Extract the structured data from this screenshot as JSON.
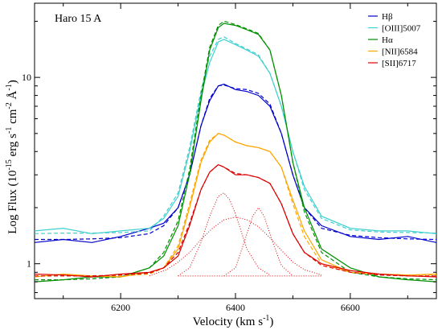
{
  "chart_data": {
    "type": "line",
    "title": "Haro 15 A",
    "xlabel": {
      "main": "Velocity (km s",
      "sup": "-1",
      "close": ")"
    },
    "ylabel": {
      "p1": "Log Flux (10",
      "s1": "-15",
      "p2": " erg s",
      "s2": "-1",
      "p3": " cm",
      "s3": "-2",
      "p4": " Å",
      "s4": "-1",
      "p5": ")"
    },
    "x_scale": "linear",
    "y_scale": "log",
    "xlim": [
      6050,
      6750
    ],
    "ylim": [
      0.65,
      25
    ],
    "x_ticks": [
      6200,
      6400,
      6600
    ],
    "x_tick_labels": [
      "6200",
      "6400",
      "6600"
    ],
    "y_ticks": [
      1,
      10
    ],
    "y_tick_labels": [
      "1",
      "10"
    ],
    "legend_position": "top-right",
    "series": [
      {
        "name": "Hβ",
        "color": "#0000cc",
        "x": [
          6050,
          6100,
          6150,
          6200,
          6250,
          6275,
          6300,
          6320,
          6340,
          6355,
          6370,
          6380,
          6400,
          6420,
          6440,
          6460,
          6480,
          6500,
          6520,
          6550,
          6600,
          6650,
          6700,
          6750
        ],
        "y": [
          1.3,
          1.35,
          1.3,
          1.4,
          1.55,
          1.65,
          2.0,
          3.0,
          5.5,
          7.5,
          9.0,
          9.2,
          8.6,
          8.4,
          8.0,
          7.0,
          5.0,
          3.0,
          2.0,
          1.6,
          1.4,
          1.35,
          1.4,
          1.3
        ],
        "fit_y": [
          1.35,
          1.35,
          1.36,
          1.38,
          1.45,
          1.6,
          2.0,
          3.0,
          5.5,
          7.7,
          9.0,
          9.1,
          8.7,
          8.6,
          8.2,
          7.2,
          5.0,
          3.0,
          2.0,
          1.55,
          1.42,
          1.38,
          1.36,
          1.35
        ]
      },
      {
        "name": "[OIII]5007",
        "color": "#40d0d0",
        "x": [
          6050,
          6100,
          6150,
          6200,
          6250,
          6275,
          6300,
          6320,
          6340,
          6355,
          6370,
          6380,
          6400,
          6420,
          6440,
          6460,
          6480,
          6500,
          6520,
          6550,
          6600,
          6650,
          6700,
          6750
        ],
        "y": [
          1.5,
          1.55,
          1.45,
          1.5,
          1.55,
          1.75,
          2.3,
          4.0,
          8.0,
          12.0,
          15.5,
          16.0,
          15.0,
          14.0,
          13.0,
          10.5,
          7.0,
          4.0,
          2.6,
          1.8,
          1.55,
          1.5,
          1.5,
          1.45
        ],
        "fit_y": [
          1.45,
          1.46,
          1.46,
          1.47,
          1.5,
          1.8,
          2.4,
          4.2,
          8.5,
          13.0,
          16.0,
          16.5,
          15.2,
          14.2,
          13.2,
          10.5,
          7.0,
          4.0,
          2.5,
          1.75,
          1.52,
          1.48,
          1.47,
          1.46
        ]
      },
      {
        "name": "Hα",
        "color": "#009000",
        "x": [
          6050,
          6100,
          6150,
          6200,
          6250,
          6275,
          6300,
          6320,
          6340,
          6355,
          6370,
          6380,
          6400,
          6420,
          6440,
          6460,
          6480,
          6500,
          6520,
          6550,
          6600,
          6650,
          6700,
          6750
        ],
        "y": [
          0.8,
          0.82,
          0.85,
          0.85,
          0.95,
          1.1,
          1.6,
          3.0,
          7.5,
          14.0,
          18.5,
          19.5,
          19.0,
          18.0,
          17.0,
          14.0,
          8.0,
          3.5,
          2.0,
          1.2,
          0.95,
          0.85,
          0.82,
          0.8
        ],
        "fit_y": [
          0.82,
          0.82,
          0.83,
          0.85,
          0.95,
          1.15,
          1.7,
          3.2,
          8.0,
          14.5,
          19.0,
          20.0,
          19.2,
          18.2,
          17.2,
          14.0,
          8.0,
          3.5,
          1.9,
          1.15,
          0.9,
          0.85,
          0.83,
          0.82
        ]
      },
      {
        "name": "[NII]6584",
        "color": "#ffa500",
        "x": [
          6050,
          6100,
          6150,
          6200,
          6250,
          6275,
          6300,
          6320,
          6340,
          6355,
          6370,
          6380,
          6400,
          6420,
          6440,
          6460,
          6480,
          6500,
          6520,
          6550,
          6600,
          6650,
          6700,
          6750
        ],
        "y": [
          0.85,
          0.88,
          0.86,
          0.85,
          0.9,
          0.95,
          1.2,
          2.0,
          3.5,
          4.5,
          5.0,
          4.9,
          4.5,
          4.3,
          4.2,
          4.0,
          3.3,
          2.2,
          1.5,
          1.05,
          0.9,
          0.88,
          0.87,
          0.88
        ],
        "fit_y": [
          0.86,
          0.86,
          0.86,
          0.86,
          0.88,
          0.95,
          1.25,
          2.1,
          3.6,
          4.6,
          5.0,
          4.9,
          4.5,
          4.3,
          4.2,
          4.0,
          3.3,
          2.1,
          1.4,
          1.0,
          0.9,
          0.88,
          0.87,
          0.87
        ]
      },
      {
        "name": "[SII]6717",
        "color": "#dd0000",
        "x": [
          6050,
          6100,
          6150,
          6200,
          6250,
          6275,
          6300,
          6320,
          6340,
          6355,
          6370,
          6380,
          6400,
          6420,
          6440,
          6460,
          6480,
          6500,
          6520,
          6550,
          6600,
          6650,
          6700,
          6750
        ],
        "y": [
          0.88,
          0.87,
          0.85,
          0.88,
          0.9,
          0.95,
          1.1,
          1.6,
          2.5,
          3.1,
          3.4,
          3.3,
          3.0,
          3.0,
          2.9,
          2.7,
          2.1,
          1.45,
          1.15,
          1.0,
          0.92,
          0.88,
          0.86,
          0.85
        ],
        "fit_y": [
          0.86,
          0.86,
          0.86,
          0.87,
          0.89,
          0.95,
          1.15,
          1.65,
          2.5,
          3.1,
          3.4,
          3.3,
          3.05,
          3.0,
          2.9,
          2.7,
          2.1,
          1.45,
          1.15,
          0.98,
          0.9,
          0.87,
          0.86,
          0.86
        ]
      }
    ],
    "components": [
      {
        "color": "#dd0000",
        "x": [
          6300,
          6320,
          6340,
          6355,
          6370,
          6380,
          6390,
          6400,
          6420,
          6440,
          6460
        ],
        "y": [
          0.86,
          0.95,
          1.3,
          1.8,
          2.3,
          2.4,
          2.2,
          1.85,
          1.2,
          0.95,
          0.87
        ]
      },
      {
        "color": "#dd0000",
        "x": [
          6250,
          6280,
          6300,
          6320,
          6340,
          6360,
          6380,
          6400,
          6420,
          6440,
          6460,
          6480,
          6500,
          6520,
          6550
        ],
        "y": [
          0.86,
          0.93,
          1.02,
          1.15,
          1.35,
          1.55,
          1.72,
          1.78,
          1.72,
          1.58,
          1.38,
          1.18,
          1.02,
          0.93,
          0.87
        ]
      },
      {
        "color": "#dd0000",
        "x": [
          6380,
          6400,
          6415,
          6430,
          6440,
          6450,
          6465,
          6480,
          6500
        ],
        "y": [
          0.86,
          0.95,
          1.3,
          1.8,
          2.0,
          1.8,
          1.3,
          0.98,
          0.86
        ]
      }
    ],
    "continuum": 0.86
  }
}
